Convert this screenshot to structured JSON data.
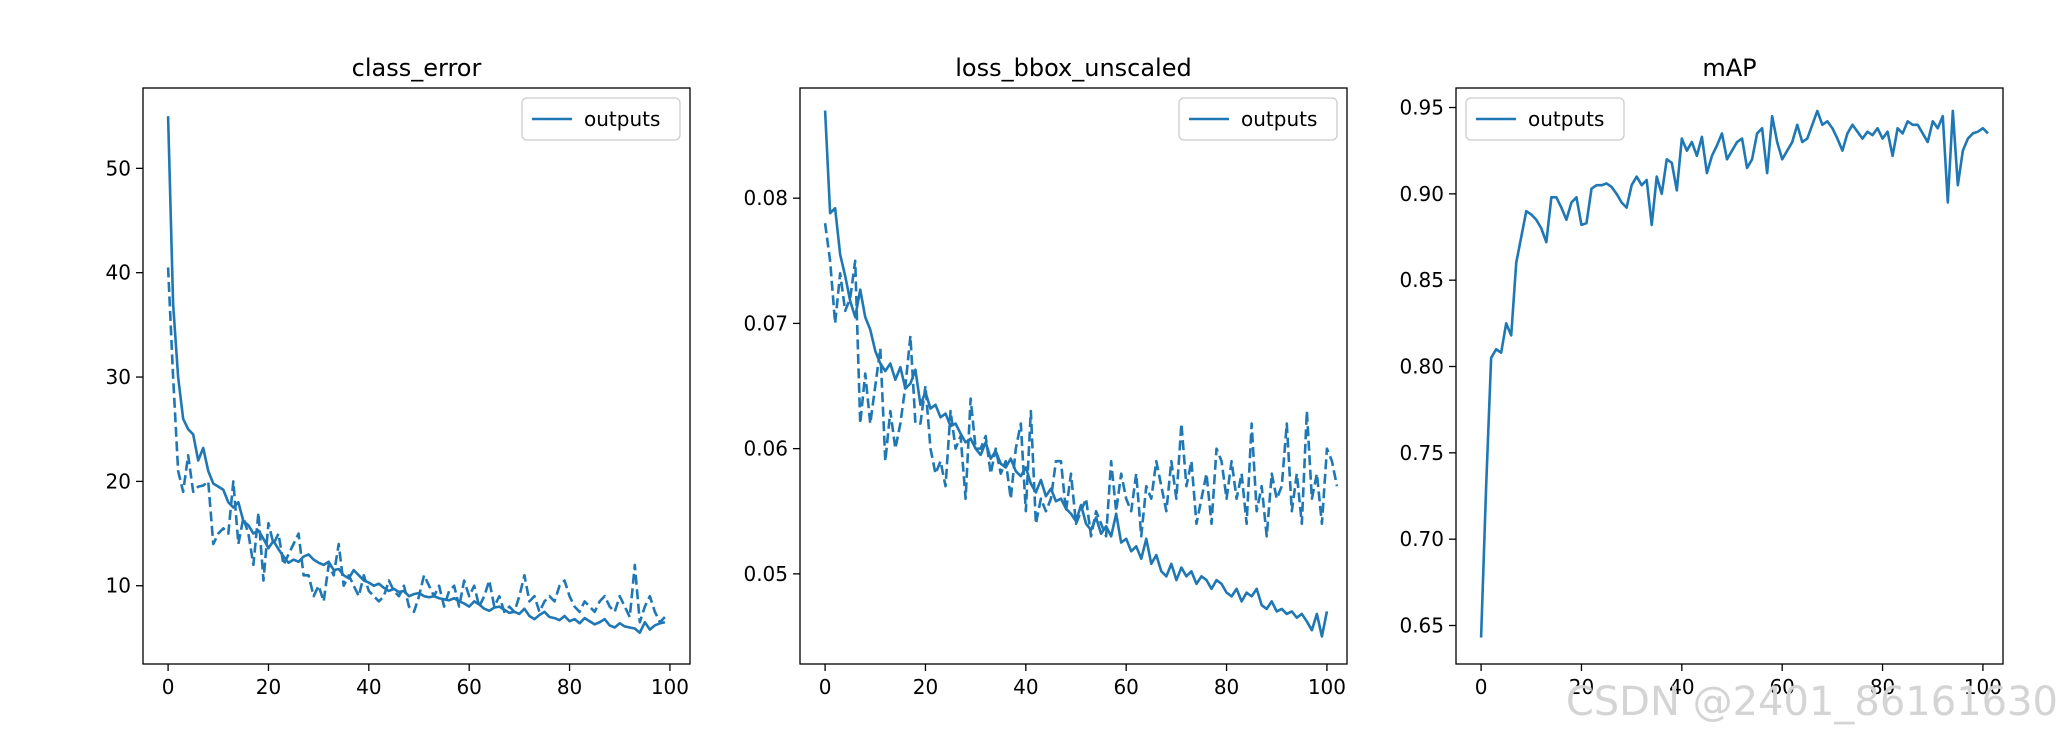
{
  "watermark": "CSDN @2401_86161630",
  "colors": {
    "series": "#1f77b4"
  },
  "chart_data": [
    {
      "type": "line",
      "title": "class_error",
      "legend": {
        "entries": [
          "outputs"
        ],
        "placement": "top-right"
      },
      "xlim": [
        -5,
        104
      ],
      "ylim": [
        2.5,
        57.7
      ],
      "xticks": [
        0,
        20,
        40,
        60,
        80,
        100
      ],
      "yticks": [
        10,
        20,
        30,
        40,
        50
      ],
      "series": [
        {
          "name": "outputs",
          "style": "solid",
          "x_start": 0,
          "x_step": 1,
          "values": [
            55,
            37,
            30,
            26,
            25,
            24.5,
            22,
            23.2,
            21,
            19.8,
            19.5,
            19.2,
            18,
            17.5,
            18,
            16.2,
            15.8,
            15,
            15.3,
            14.5,
            13.6,
            14.3,
            13.5,
            12.8,
            12.2,
            12.5,
            12.3,
            12.8,
            13,
            12.5,
            12.2,
            12,
            12.3,
            11.5,
            11.6,
            11,
            10.7,
            11.5,
            11,
            10.5,
            10.3,
            10,
            10.2,
            9.8,
            9.5,
            9.7,
            9.4,
            9.5,
            9,
            9.2,
            9.3,
            9,
            8.9,
            9,
            8.8,
            8.7,
            8.6,
            8.8,
            8.5,
            8.3,
            8,
            8.5,
            8.2,
            7.8,
            7.6,
            7.9,
            8,
            7.7,
            7.4,
            7.5,
            7.3,
            7.8,
            7.1,
            6.8,
            7.2,
            7.5,
            7,
            6.9,
            6.7,
            7.1,
            6.6,
            6.8,
            6.4,
            6.9,
            6.6,
            6.3,
            6.5,
            6.8,
            6.2,
            6,
            6.4,
            6.1,
            6,
            5.9,
            5.5,
            6.5,
            5.8,
            6.2,
            6.4,
            6.5
          ]
        },
        {
          "style": "dashed",
          "x_start": 0,
          "x_step": 1,
          "values": [
            40.5,
            30,
            21,
            19,
            22.5,
            19,
            19.5,
            19.6,
            20,
            14,
            15,
            15.5,
            15,
            20,
            14,
            16.5,
            15,
            12,
            17,
            10.5,
            16,
            14,
            15,
            12,
            13,
            14,
            15,
            11,
            11,
            9,
            10,
            8.5,
            12,
            11,
            14,
            10,
            11,
            10,
            9,
            11,
            9.5,
            9,
            8.5,
            9,
            10.5,
            9.5,
            9,
            10,
            8,
            7.5,
            9,
            11,
            10,
            9,
            10,
            8,
            9.5,
            10,
            8,
            10.5,
            9,
            10,
            8,
            9,
            10.5,
            8,
            9,
            7.5,
            8,
            7.5,
            9,
            11,
            8.5,
            9,
            7.5,
            8.5,
            9,
            8.5,
            10,
            10.5,
            9,
            8,
            7.5,
            8.5,
            8,
            7.5,
            8.5,
            9,
            8,
            7.5,
            9,
            8,
            7,
            12,
            6.5,
            8,
            9,
            7.5,
            6.5,
            7
          ]
        }
      ]
    },
    {
      "type": "line",
      "title": "loss_bbox_unscaled",
      "legend": {
        "entries": [
          "outputs"
        ],
        "placement": "top-right"
      },
      "xlim": [
        -5,
        104
      ],
      "ylim": [
        0.0428,
        0.0888
      ],
      "xticks": [
        0,
        20,
        40,
        60,
        80,
        100
      ],
      "yticks": [
        0.05,
        0.06,
        0.07,
        0.08
      ],
      "series": [
        {
          "name": "outputs",
          "style": "solid",
          "x_start": 0,
          "x_step": 1,
          "values": [
            0.087,
            0.0788,
            0.0792,
            0.0755,
            0.0738,
            0.0718,
            0.0705,
            0.0727,
            0.0705,
            0.0695,
            0.0678,
            0.0668,
            0.0662,
            0.0668,
            0.0655,
            0.0665,
            0.0648,
            0.0652,
            0.0663,
            0.0635,
            0.0645,
            0.0632,
            0.0635,
            0.0625,
            0.0628,
            0.0618,
            0.062,
            0.0612,
            0.0605,
            0.0608,
            0.06,
            0.0595,
            0.0605,
            0.0592,
            0.0598,
            0.0588,
            0.0585,
            0.0592,
            0.0582,
            0.0578,
            0.0585,
            0.0572,
            0.0565,
            0.0575,
            0.0562,
            0.0568,
            0.0558,
            0.056,
            0.0552,
            0.0548,
            0.0542,
            0.0555,
            0.054,
            0.0535,
            0.0545,
            0.0532,
            0.0538,
            0.053,
            0.0548,
            0.0525,
            0.0528,
            0.0518,
            0.0522,
            0.0512,
            0.0528,
            0.0508,
            0.0515,
            0.0502,
            0.0498,
            0.0508,
            0.0495,
            0.0505,
            0.0498,
            0.0502,
            0.0492,
            0.0498,
            0.0495,
            0.0488,
            0.0495,
            0.0492,
            0.0485,
            0.0482,
            0.0488,
            0.0478,
            0.0485,
            0.0482,
            0.0488,
            0.0475,
            0.0472,
            0.0478,
            0.047,
            0.0472,
            0.0468,
            0.047,
            0.0465,
            0.0468,
            0.0462,
            0.0455,
            0.0468,
            0.045,
            0.047
          ]
        },
        {
          "style": "dashed",
          "x_start": 0,
          "x_step": 1,
          "values": [
            0.078,
            0.075,
            0.07,
            0.074,
            0.071,
            0.072,
            0.075,
            0.062,
            0.066,
            0.062,
            0.065,
            0.068,
            0.059,
            0.063,
            0.06,
            0.062,
            0.065,
            0.069,
            0.062,
            0.062,
            0.065,
            0.06,
            0.058,
            0.059,
            0.057,
            0.063,
            0.06,
            0.061,
            0.056,
            0.064,
            0.06,
            0.06,
            0.061,
            0.058,
            0.06,
            0.058,
            0.059,
            0.056,
            0.06,
            0.062,
            0.055,
            0.063,
            0.054,
            0.056,
            0.055,
            0.056,
            0.059,
            0.059,
            0.055,
            0.058,
            0.054,
            0.055,
            0.056,
            0.053,
            0.055,
            0.054,
            0.053,
            0.059,
            0.055,
            0.058,
            0.056,
            0.055,
            0.058,
            0.053,
            0.057,
            0.056,
            0.059,
            0.057,
            0.055,
            0.059,
            0.056,
            0.062,
            0.057,
            0.059,
            0.054,
            0.056,
            0.058,
            0.054,
            0.06,
            0.059,
            0.056,
            0.059,
            0.056,
            0.058,
            0.054,
            0.062,
            0.055,
            0.057,
            0.053,
            0.058,
            0.056,
            0.057,
            0.062,
            0.055,
            0.058,
            0.054,
            0.063,
            0.056,
            0.058,
            0.054,
            0.06,
            0.059,
            0.057
          ]
        }
      ]
    },
    {
      "type": "line",
      "title": "mAP",
      "legend": {
        "entries": [
          "outputs"
        ],
        "placement": "top-left"
      },
      "xlim": [
        -5,
        104
      ],
      "ylim": [
        0.6277,
        0.9613
      ],
      "xticks": [
        0,
        20,
        40,
        60,
        80,
        100
      ],
      "yticks": [
        0.65,
        0.7,
        0.75,
        0.8,
        0.85,
        0.9,
        0.95
      ],
      "series": [
        {
          "name": "outputs",
          "style": "solid",
          "x_start": 0,
          "x_step": 1,
          "values": [
            0.643,
            0.73,
            0.805,
            0.81,
            0.808,
            0.825,
            0.818,
            0.86,
            0.875,
            0.89,
            0.888,
            0.885,
            0.88,
            0.872,
            0.898,
            0.898,
            0.892,
            0.885,
            0.895,
            0.898,
            0.882,
            0.883,
            0.903,
            0.905,
            0.905,
            0.906,
            0.904,
            0.9,
            0.895,
            0.892,
            0.905,
            0.91,
            0.905,
            0.908,
            0.882,
            0.91,
            0.9,
            0.92,
            0.918,
            0.902,
            0.932,
            0.925,
            0.93,
            0.922,
            0.933,
            0.912,
            0.922,
            0.928,
            0.935,
            0.92,
            0.925,
            0.93,
            0.932,
            0.915,
            0.92,
            0.935,
            0.938,
            0.912,
            0.945,
            0.93,
            0.92,
            0.925,
            0.93,
            0.94,
            0.93,
            0.932,
            0.94,
            0.948,
            0.94,
            0.942,
            0.938,
            0.932,
            0.925,
            0.935,
            0.94,
            0.936,
            0.932,
            0.936,
            0.934,
            0.938,
            0.932,
            0.936,
            0.922,
            0.938,
            0.935,
            0.942,
            0.94,
            0.94,
            0.935,
            0.93,
            0.942,
            0.938,
            0.945,
            0.895,
            0.948,
            0.905,
            0.925,
            0.932,
            0.935,
            0.936,
            0.938,
            0.935
          ]
        }
      ]
    }
  ]
}
